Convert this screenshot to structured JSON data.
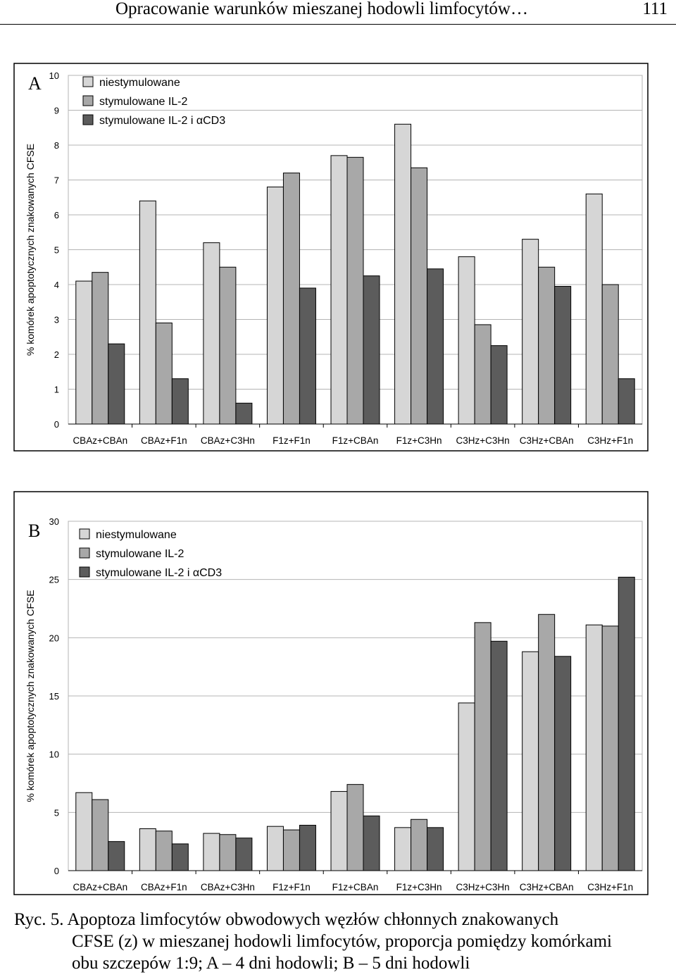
{
  "header": {
    "title": "Opracowanie warunków mieszanej hodowli limfocytów…",
    "page_number": "111"
  },
  "colors": {
    "series": [
      "#d6d6d6",
      "#a8a8a8",
      "#5c5c5c"
    ],
    "grid": "#b4b4b4",
    "border": "#000000"
  },
  "chart_data": [
    {
      "panel_label": "A",
      "type": "bar",
      "ylabel": "% komórek apoptotycznych znakowanych CFSE",
      "ylim": [
        0,
        10
      ],
      "yticks": [
        "0",
        "1",
        "2",
        "3",
        "4",
        "5",
        "6",
        "7",
        "8",
        "9",
        "10"
      ],
      "categories": [
        "CBAz+CBAn",
        "CBAz+F1n",
        "CBAz+C3Hn",
        "F1z+F1n",
        "F1z+CBAn",
        "F1z+C3Hn",
        "C3Hz+C3Hn",
        "C3Hz+CBAn",
        "C3Hz+F1n"
      ],
      "series": [
        {
          "name": "niestymulowane",
          "values": [
            4.1,
            6.4,
            5.2,
            6.8,
            7.7,
            8.6,
            4.8,
            5.3,
            6.6
          ]
        },
        {
          "name": "stymulowane IL-2",
          "values": [
            4.35,
            2.9,
            4.5,
            7.2,
            7.65,
            7.35,
            2.85,
            4.5,
            4.0
          ]
        },
        {
          "name": "stymulowane IL-2 i αCD3",
          "values": [
            2.3,
            1.3,
            0.6,
            3.9,
            4.25,
            4.45,
            2.25,
            3.95,
            1.3
          ]
        }
      ],
      "legend": "top-left"
    },
    {
      "panel_label": "B",
      "type": "bar",
      "ylabel": "% komórek apoptotycznych znakowanych CFSE",
      "ylim": [
        0,
        30
      ],
      "yticks": [
        "0",
        "5",
        "10",
        "15",
        "20",
        "25",
        "30"
      ],
      "categories": [
        "CBAz+CBAn",
        "CBAz+F1n",
        "CBAz+C3Hn",
        "F1z+F1n",
        "F1z+CBAn",
        "F1z+C3Hn",
        "C3Hz+C3Hn",
        "C3Hz+CBAn",
        "C3Hz+F1n"
      ],
      "series": [
        {
          "name": "niestymulowane",
          "values": [
            6.7,
            3.6,
            3.2,
            3.8,
            6.8,
            3.7,
            14.4,
            18.8,
            21.1
          ]
        },
        {
          "name": "stymulowane IL-2",
          "values": [
            6.1,
            3.4,
            3.1,
            3.5,
            7.4,
            4.4,
            21.3,
            22.0,
            21.0
          ]
        },
        {
          "name": "stymulowane IL-2 i αCD3",
          "values": [
            2.5,
            2.3,
            2.8,
            3.9,
            4.7,
            3.7,
            19.7,
            18.4,
            25.2
          ]
        }
      ],
      "legend": "top-left"
    }
  ],
  "caption": {
    "line1": "Ryc. 5. Apoptoza limfocytów obwodowych węzłów chłonnych znakowanych",
    "line2": "CFSE (z) w mieszanej hodowli limfocytów, proporcja pomiędzy komórkami",
    "line3": "obu szczepów 1:9; A – 4 dni hodowli; B – 5 dni hodowli"
  }
}
